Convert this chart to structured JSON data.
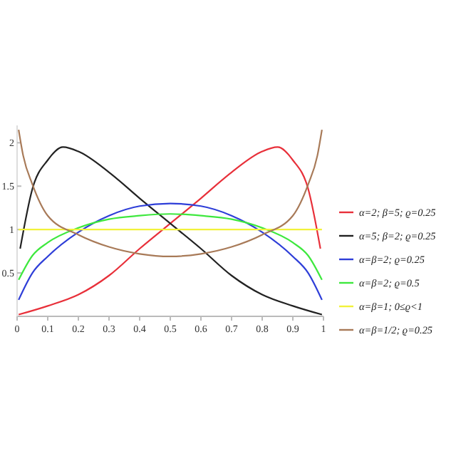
{
  "chart_data": {
    "type": "line",
    "xlim": [
      0,
      1
    ],
    "ylim": [
      0,
      2.2
    ],
    "xticks": [
      0,
      0.1,
      0.2,
      0.3,
      0.4,
      0.5,
      0.6,
      0.7,
      0.8,
      0.9,
      1
    ],
    "yticks": [
      0.5,
      1,
      1.5,
      2
    ],
    "grid": false,
    "legend": "right",
    "marker": "none",
    "line_style": "solid",
    "series": [
      {
        "name": "α=2; β=5; ϱ=0.25",
        "color": "#e8303a",
        "x": [
          0.005,
          0.1,
          0.2,
          0.3,
          0.4,
          0.5,
          0.6,
          0.7,
          0.8,
          0.85,
          0.9,
          0.95,
          0.99
        ],
        "values": [
          0.02,
          0.12,
          0.25,
          0.47,
          0.78,
          1.07,
          1.36,
          1.66,
          1.9,
          1.95,
          1.8,
          1.47,
          0.78
        ]
      },
      {
        "name": "α=5; β=2; ϱ=0.25",
        "color": "#222222",
        "x": [
          0.01,
          0.05,
          0.1,
          0.15,
          0.2,
          0.3,
          0.4,
          0.5,
          0.6,
          0.7,
          0.8,
          0.9,
          0.995
        ],
        "values": [
          0.78,
          1.47,
          1.8,
          1.95,
          1.9,
          1.66,
          1.36,
          1.07,
          0.78,
          0.47,
          0.25,
          0.12,
          0.02
        ]
      },
      {
        "name": "α=β=2; ϱ=0.25",
        "color": "#2e3ed8",
        "x": [
          0.005,
          0.05,
          0.1,
          0.2,
          0.3,
          0.4,
          0.5,
          0.6,
          0.7,
          0.8,
          0.9,
          0.95,
          0.995
        ],
        "values": [
          0.19,
          0.5,
          0.69,
          0.97,
          1.16,
          1.27,
          1.3,
          1.27,
          1.16,
          0.97,
          0.69,
          0.5,
          0.19
        ]
      },
      {
        "name": "α=β=2; ϱ=0.5",
        "color": "#3ee83e",
        "x": [
          0.005,
          0.05,
          0.1,
          0.2,
          0.3,
          0.4,
          0.5,
          0.6,
          0.7,
          0.8,
          0.9,
          0.95,
          0.995
        ],
        "values": [
          0.42,
          0.7,
          0.85,
          1.02,
          1.12,
          1.16,
          1.18,
          1.16,
          1.12,
          1.02,
          0.85,
          0.7,
          0.42
        ]
      },
      {
        "name": "α=β=1; 0≤ϱ<1",
        "color": "#f2f23a",
        "x": [
          0.005,
          0.995
        ],
        "values": [
          1,
          1
        ]
      },
      {
        "name": "α=β=1/2; ϱ=0.25",
        "color": "#a87a58",
        "x": [
          0.005,
          0.02,
          0.05,
          0.1,
          0.2,
          0.3,
          0.4,
          0.5,
          0.6,
          0.7,
          0.8,
          0.9,
          0.95,
          0.98,
          0.995
        ],
        "values": [
          2.15,
          1.85,
          1.52,
          1.16,
          0.94,
          0.8,
          0.72,
          0.69,
          0.72,
          0.8,
          0.94,
          1.16,
          1.52,
          1.85,
          2.15
        ]
      }
    ]
  }
}
